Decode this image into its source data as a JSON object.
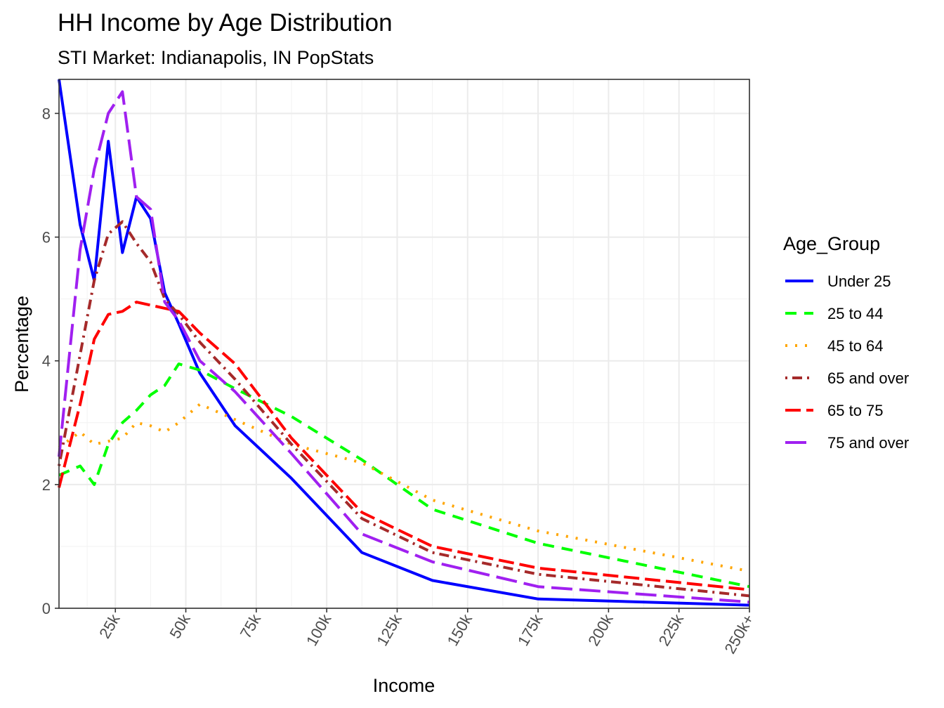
{
  "chart_data": {
    "type": "line",
    "title": "HH Income by Age Distribution",
    "subtitle": "STI Market: Indianapolis, IN PopStats",
    "xlabel": "Income",
    "ylabel": "Percentage",
    "xlim": [
      5,
      250
    ],
    "ylim": [
      0,
      8.55
    ],
    "x_ticks": [
      {
        "value": 25,
        "label": "25k"
      },
      {
        "value": 50,
        "label": "50k"
      },
      {
        "value": 75,
        "label": "75k"
      },
      {
        "value": 100,
        "label": "100k"
      },
      {
        "value": 125,
        "label": "125k"
      },
      {
        "value": 150,
        "label": "150k"
      },
      {
        "value": 175,
        "label": "175k"
      },
      {
        "value": 200,
        "label": "200k"
      },
      {
        "value": 225,
        "label": "225k"
      },
      {
        "value": 250,
        "label": "250k+"
      }
    ],
    "y_ticks": [
      {
        "value": 0,
        "label": "0"
      },
      {
        "value": 2,
        "label": "2"
      },
      {
        "value": 4,
        "label": "4"
      },
      {
        "value": 6,
        "label": "6"
      },
      {
        "value": 8,
        "label": "8"
      }
    ],
    "grid": true,
    "legend": {
      "title": "Age_Group",
      "position": "right"
    },
    "x": [
      5,
      12.5,
      17.5,
      22.5,
      27.5,
      32.5,
      37.5,
      42.5,
      47.5,
      55,
      67.5,
      87.5,
      112.5,
      137.5,
      175,
      250
    ],
    "series": [
      {
        "name": "Under 25",
        "color": "#0000ff",
        "dash": "solid",
        "values": [
          8.55,
          6.2,
          5.3,
          7.55,
          5.75,
          6.65,
          6.3,
          5.1,
          4.6,
          3.8,
          2.95,
          2.1,
          0.9,
          0.45,
          0.15,
          0.05
        ]
      },
      {
        "name": "25 to 44",
        "color": "#00ff00",
        "dash": "dashed",
        "values": [
          2.15,
          2.3,
          2.0,
          2.65,
          3.0,
          3.2,
          3.45,
          3.6,
          3.95,
          3.85,
          3.55,
          3.1,
          2.4,
          1.6,
          1.05,
          0.35
        ]
      },
      {
        "name": "45 to 64",
        "color": "#ffa500",
        "dash": "dotted",
        "values": [
          2.6,
          2.85,
          2.65,
          2.7,
          2.75,
          3.0,
          2.95,
          2.85,
          3.0,
          3.3,
          3.05,
          2.65,
          2.35,
          1.75,
          1.25,
          0.6
        ]
      },
      {
        "name": "65 and over",
        "color": "#a52a2a",
        "dash": "dotdash",
        "values": [
          2.3,
          4.1,
          5.3,
          6.05,
          6.25,
          5.9,
          5.6,
          5.0,
          4.75,
          4.3,
          3.7,
          2.65,
          1.45,
          0.9,
          0.55,
          0.2
        ]
      },
      {
        "name": "65 to 75",
        "color": "#ff0000",
        "dash": "longdash",
        "values": [
          1.95,
          3.3,
          4.35,
          4.75,
          4.8,
          4.95,
          4.9,
          4.85,
          4.8,
          4.45,
          3.95,
          2.75,
          1.55,
          1.0,
          0.65,
          0.3
        ]
      },
      {
        "name": "75 and over",
        "color": "#a020f0",
        "dash": "longdash2",
        "values": [
          2.45,
          5.8,
          7.1,
          8.0,
          8.35,
          6.65,
          6.45,
          4.95,
          4.65,
          4.0,
          3.5,
          2.5,
          1.2,
          0.75,
          0.35,
          0.1
        ]
      }
    ]
  }
}
